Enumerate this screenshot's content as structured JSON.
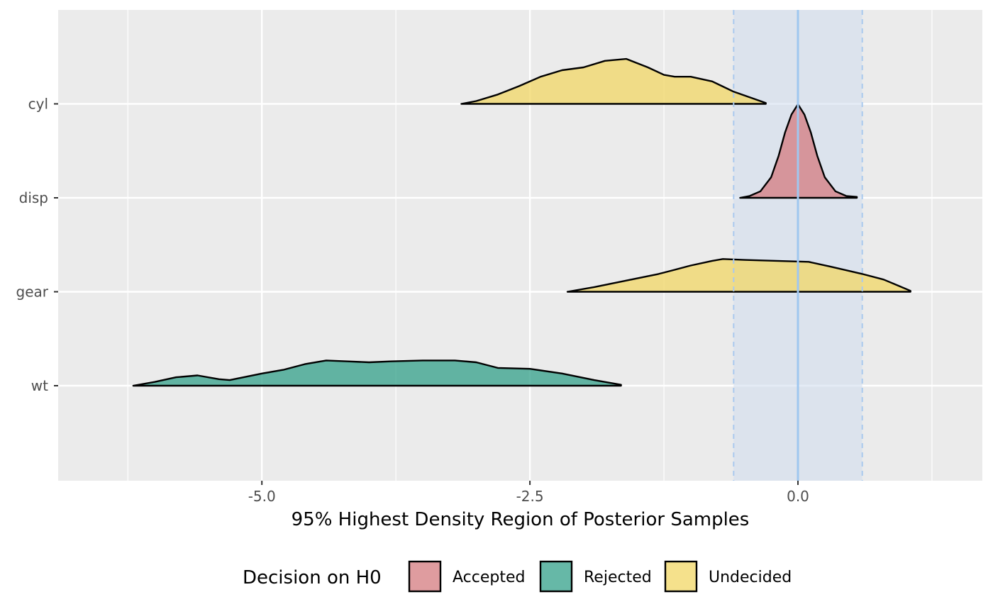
{
  "chart_data": {
    "type": "area",
    "subtype": "ridgeline-density",
    "title": "",
    "xlabel": "95% Highest Density Region of Posterior Samples",
    "ylabel": "",
    "xlim": [
      -6.9,
      1.72
    ],
    "x_ticks": [
      -5.0,
      -2.5,
      0.0
    ],
    "x_tick_labels": [
      "-5.0",
      "-2.5",
      "0.0"
    ],
    "categories": [
      "wt",
      "gear",
      "disp",
      "cyl"
    ],
    "grid": true,
    "rope": {
      "low": -0.6,
      "high": 0.6,
      "center": 0.0
    },
    "legend": {
      "title": "Decision on H0",
      "position": "bottom",
      "entries": [
        {
          "label": "Accepted",
          "color": "#d47b7f"
        },
        {
          "label": "Rejected",
          "color": "#33a08a"
        },
        {
          "label": "Undecided",
          "color": "#f1d766"
        }
      ]
    },
    "series": [
      {
        "category": "cyl",
        "decision": "Undecided",
        "points": [
          [
            -3.14,
            0
          ],
          [
            -3.0,
            0.03
          ],
          [
            -2.8,
            0.1
          ],
          [
            -2.6,
            0.19
          ],
          [
            -2.4,
            0.29
          ],
          [
            -2.2,
            0.36
          ],
          [
            -2.0,
            0.39
          ],
          [
            -1.8,
            0.46
          ],
          [
            -1.6,
            0.48
          ],
          [
            -1.4,
            0.39
          ],
          [
            -1.25,
            0.31
          ],
          [
            -1.15,
            0.29
          ],
          [
            -1.0,
            0.29
          ],
          [
            -0.8,
            0.24
          ],
          [
            -0.6,
            0.13
          ],
          [
            -0.4,
            0.05
          ],
          [
            -0.3,
            0.01
          ]
        ]
      },
      {
        "category": "disp",
        "decision": "Accepted",
        "points": [
          [
            -0.54,
            0
          ],
          [
            -0.45,
            0.02
          ],
          [
            -0.35,
            0.07
          ],
          [
            -0.25,
            0.22
          ],
          [
            -0.18,
            0.45
          ],
          [
            -0.12,
            0.7
          ],
          [
            -0.06,
            0.89
          ],
          [
            0.0,
            1.0
          ],
          [
            0.06,
            0.89
          ],
          [
            0.12,
            0.7
          ],
          [
            0.18,
            0.45
          ],
          [
            0.25,
            0.22
          ],
          [
            0.35,
            0.07
          ],
          [
            0.45,
            0.02
          ],
          [
            0.55,
            0.01
          ]
        ]
      },
      {
        "category": "gear",
        "decision": "Undecided",
        "points": [
          [
            -2.15,
            0
          ],
          [
            -1.9,
            0.05
          ],
          [
            -1.6,
            0.12
          ],
          [
            -1.3,
            0.19
          ],
          [
            -1.2,
            0.22
          ],
          [
            -1.0,
            0.28
          ],
          [
            -0.8,
            0.33
          ],
          [
            -0.7,
            0.35
          ],
          [
            -0.5,
            0.34
          ],
          [
            -0.2,
            0.33
          ],
          [
            0.1,
            0.32
          ],
          [
            0.3,
            0.27
          ],
          [
            0.6,
            0.19
          ],
          [
            0.8,
            0.13
          ],
          [
            1.05,
            0.01
          ]
        ]
      },
      {
        "category": "wt",
        "decision": "Rejected",
        "points": [
          [
            -6.2,
            0
          ],
          [
            -6.0,
            0.04
          ],
          [
            -5.8,
            0.09
          ],
          [
            -5.6,
            0.11
          ],
          [
            -5.4,
            0.07
          ],
          [
            -5.3,
            0.06
          ],
          [
            -5.0,
            0.13
          ],
          [
            -4.8,
            0.17
          ],
          [
            -4.6,
            0.23
          ],
          [
            -4.4,
            0.27
          ],
          [
            -4.2,
            0.26
          ],
          [
            -4.0,
            0.25
          ],
          [
            -3.8,
            0.26
          ],
          [
            -3.5,
            0.27
          ],
          [
            -3.2,
            0.27
          ],
          [
            -3.0,
            0.25
          ],
          [
            -2.8,
            0.19
          ],
          [
            -2.5,
            0.18
          ],
          [
            -2.2,
            0.13
          ],
          [
            -1.9,
            0.06
          ],
          [
            -1.65,
            0.01
          ]
        ]
      }
    ]
  }
}
